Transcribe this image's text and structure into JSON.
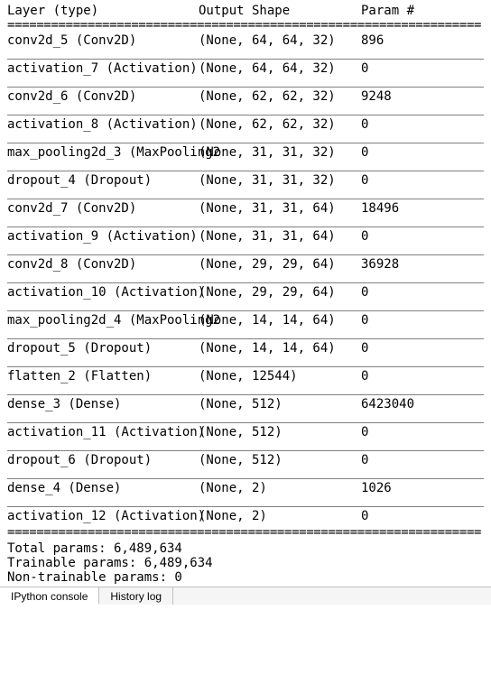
{
  "columns": {
    "layer": "Layer (type)",
    "shape": "Output Shape",
    "param": "Param #"
  },
  "sep_double": "=================================================================",
  "layers": [
    {
      "name": "conv2d_5 (Conv2D)",
      "shape": "(None, 64, 64, 32)",
      "param": "896"
    },
    {
      "name": "activation_7 (Activation)",
      "shape": "(None, 64, 64, 32)",
      "param": "0"
    },
    {
      "name": "conv2d_6 (Conv2D)",
      "shape": "(None, 62, 62, 32)",
      "param": "9248"
    },
    {
      "name": "activation_8 (Activation)",
      "shape": "(None, 62, 62, 32)",
      "param": "0"
    },
    {
      "name": "max_pooling2d_3 (MaxPooling2",
      "shape": "(None, 31, 31, 32)",
      "param": "0"
    },
    {
      "name": "dropout_4 (Dropout)",
      "shape": "(None, 31, 31, 32)",
      "param": "0"
    },
    {
      "name": "conv2d_7 (Conv2D)",
      "shape": "(None, 31, 31, 64)",
      "param": "18496"
    },
    {
      "name": "activation_9 (Activation)",
      "shape": "(None, 31, 31, 64)",
      "param": "0"
    },
    {
      "name": "conv2d_8 (Conv2D)",
      "shape": "(None, 29, 29, 64)",
      "param": "36928"
    },
    {
      "name": "activation_10 (Activation)",
      "shape": "(None, 29, 29, 64)",
      "param": "0"
    },
    {
      "name": "max_pooling2d_4 (MaxPooling2",
      "shape": "(None, 14, 14, 64)",
      "param": "0"
    },
    {
      "name": "dropout_5 (Dropout)",
      "shape": "(None, 14, 14, 64)",
      "param": "0"
    },
    {
      "name": "flatten_2 (Flatten)",
      "shape": "(None, 12544)",
      "param": "0"
    },
    {
      "name": "dense_3 (Dense)",
      "shape": "(None, 512)",
      "param": "6423040"
    },
    {
      "name": "activation_11 (Activation)",
      "shape": "(None, 512)",
      "param": "0"
    },
    {
      "name": "dropout_6 (Dropout)",
      "shape": "(None, 512)",
      "param": "0"
    },
    {
      "name": "dense_4 (Dense)",
      "shape": "(None, 2)",
      "param": "1026"
    },
    {
      "name": "activation_12 (Activation)",
      "shape": "(None, 2)",
      "param": "0"
    }
  ],
  "totals": {
    "total": "Total params: 6,489,634",
    "trainable": "Trainable params: 6,489,634",
    "nontrainable": "Non-trainable params: 0"
  },
  "tabs": {
    "ipython": "IPython console",
    "history": "History log"
  }
}
